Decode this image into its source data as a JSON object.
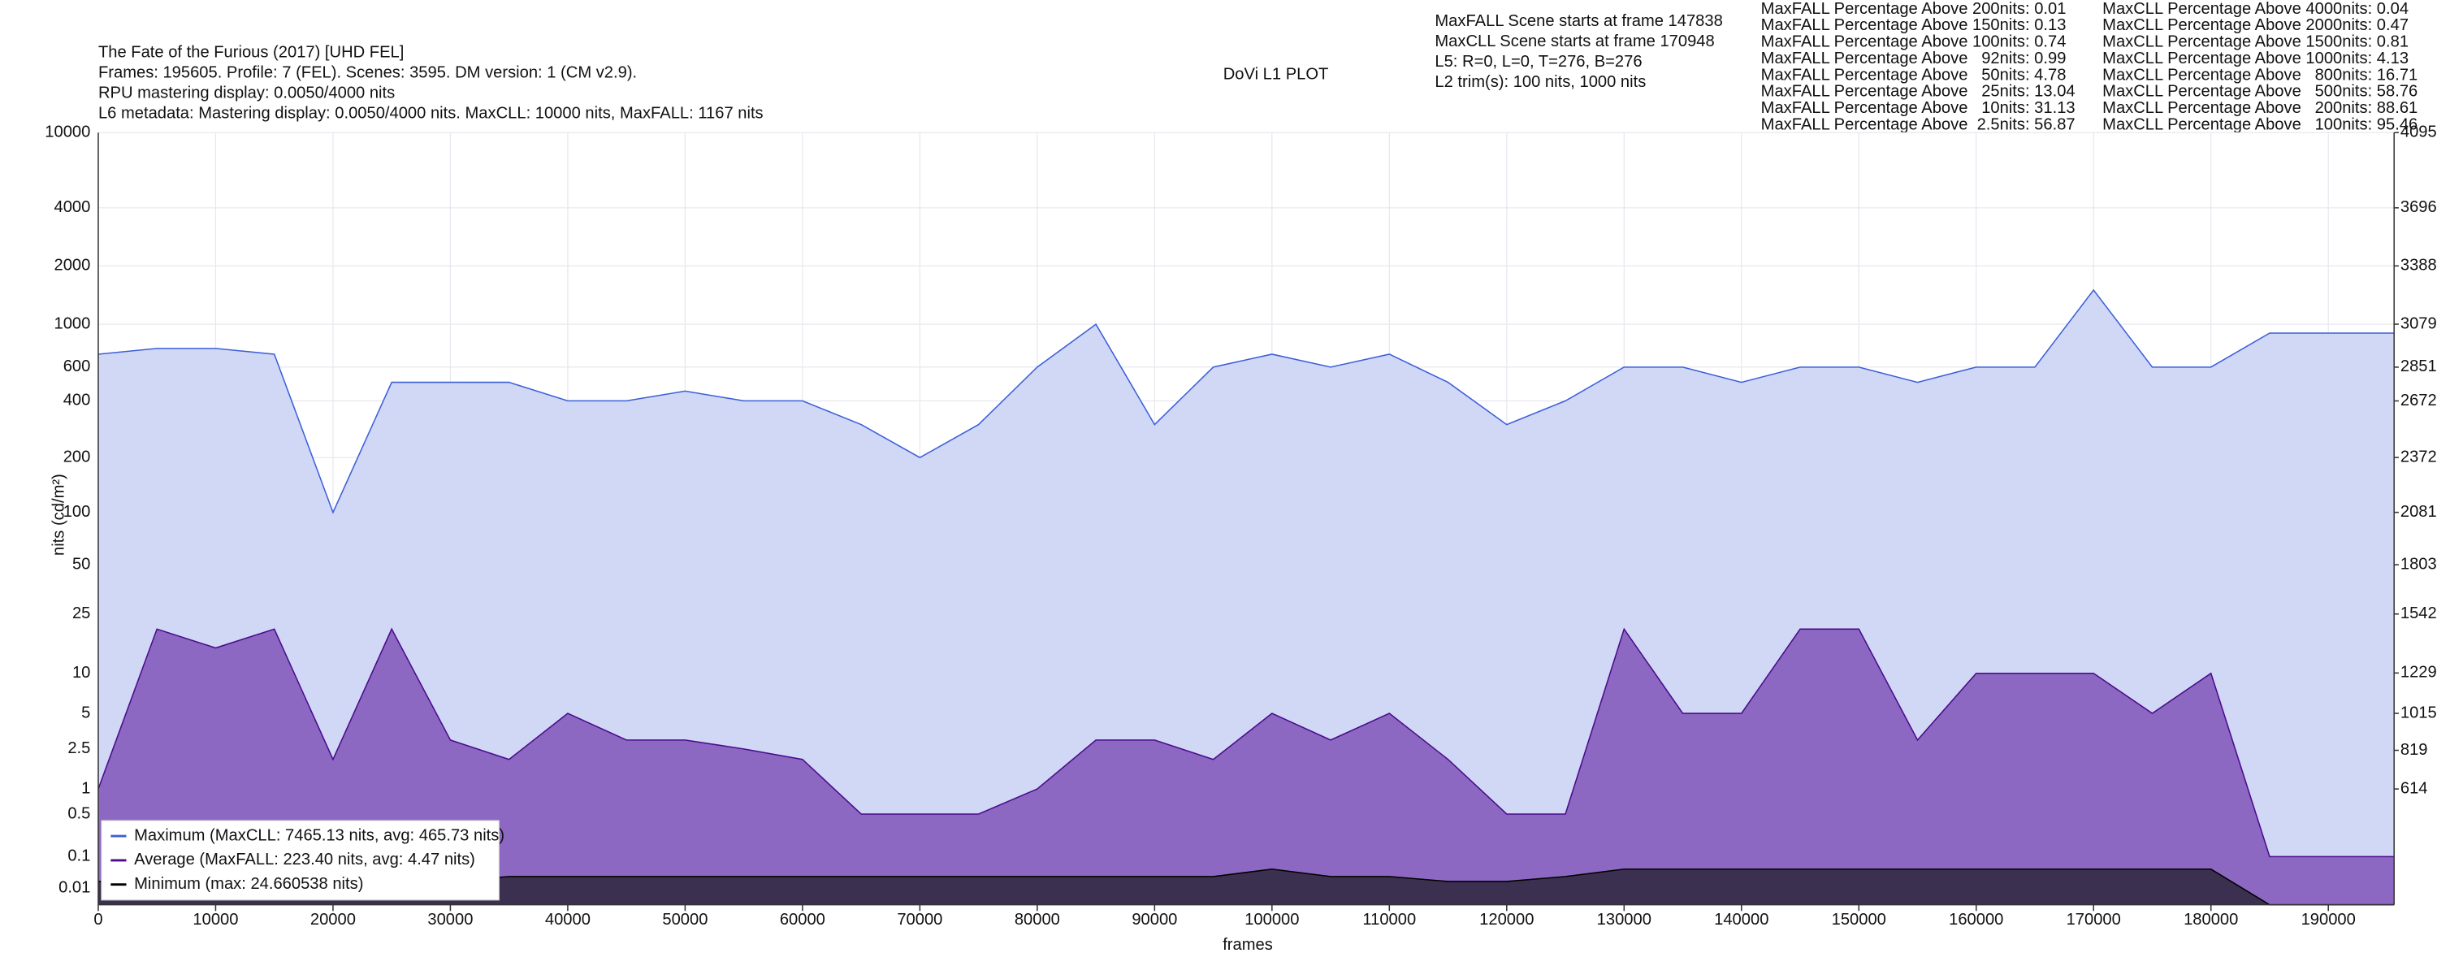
{
  "chart_data": {
    "type": "area",
    "title": "DoVi L1 PLOT",
    "header": [
      "The Fate of the Furious (2017) [UHD FEL]",
      "Frames: 195605. Profile: 7 (FEL). Scenes: 3595. DM version: 1 (CM v2.9).",
      "RPU mastering display: 0.0050/4000 nits",
      "L6 metadata: Mastering display: 0.0050/4000 nits. MaxCLL: 10000 nits, MaxFALL: 1167 nits"
    ],
    "info": [
      "MaxFALL Scene starts at frame 147838",
      "MaxCLL Scene starts at frame 170948",
      "L5: R=0, L=0, T=276, B=276",
      "L2 trim(s): 100 nits, 1000 nits"
    ],
    "maxfall_percentages": [
      "MaxFALL Percentage Above 200nits: 0.01",
      "MaxFALL Percentage Above 150nits: 0.13",
      "MaxFALL Percentage Above 100nits: 0.74",
      "MaxFALL Percentage Above   92nits: 0.99",
      "MaxFALL Percentage Above   50nits: 4.78",
      "MaxFALL Percentage Above   25nits: 13.04",
      "MaxFALL Percentage Above   10nits: 31.13",
      "MaxFALL Percentage Above  2.5nits: 56.87"
    ],
    "maxcll_percentages": [
      "MaxCLL Percentage Above 4000nits: 0.04",
      "MaxCLL Percentage Above 2000nits: 0.47",
      "MaxCLL Percentage Above 1500nits: 0.81",
      "MaxCLL Percentage Above 1000nits: 4.13",
      "MaxCLL Percentage Above   800nits: 16.71",
      "MaxCLL Percentage Above   500nits: 58.76",
      "MaxCLL Percentage Above   200nits: 88.61",
      "MaxCLL Percentage Above   100nits: 95.46"
    ],
    "x_label": "frames",
    "y_label": "nits (cd/m²)",
    "yscale": "pq",
    "grid": true,
    "x": [
      0,
      5000,
      10000,
      15000,
      20000,
      25000,
      30000,
      35000,
      40000,
      45000,
      50000,
      55000,
      60000,
      65000,
      70000,
      75000,
      80000,
      85000,
      90000,
      95000,
      100000,
      105000,
      110000,
      115000,
      120000,
      125000,
      130000,
      135000,
      140000,
      145000,
      150000,
      155000,
      160000,
      165000,
      170000,
      175000,
      180000,
      185000,
      190000,
      195000,
      195605
    ],
    "series": [
      {
        "name": "Maximum (MaxCLL: 7465.13 nits, avg: 465.73 nits)",
        "color": "#3c5fd8",
        "fill": "#d0d8f6",
        "values": [
          700,
          750,
          750,
          700,
          100,
          500,
          500,
          500,
          400,
          400,
          450,
          400,
          400,
          300,
          200,
          300,
          600,
          1000,
          300,
          600,
          700,
          600,
          700,
          500,
          300,
          400,
          600,
          600,
          500,
          600,
          600,
          500,
          600,
          600,
          1500,
          600,
          600,
          900,
          900,
          900,
          900
        ]
      },
      {
        "name": "Average (MaxFALL: 223.40 nits, avg: 4.47 nits)",
        "color": "#4b0a8c",
        "fill": "#8c68c2",
        "values": [
          1,
          20,
          15,
          20,
          2,
          20,
          3,
          2,
          5,
          3,
          3,
          2.5,
          2,
          0.5,
          0.5,
          0.5,
          1,
          3,
          3,
          2,
          5,
          3,
          5,
          2,
          0.5,
          0.5,
          20,
          5,
          5,
          20,
          20,
          3,
          10,
          10,
          10,
          5,
          10,
          0.1,
          0.1,
          0.1,
          0.1
        ]
      },
      {
        "name": "Minimum (max: 24.660538 nits)",
        "color": "#000000",
        "fill": "#3b3050",
        "values": [
          0.02,
          0.02,
          0.02,
          0.02,
          0.02,
          0.02,
          0.02,
          0.03,
          0.03,
          0.03,
          0.03,
          0.03,
          0.03,
          0.03,
          0.03,
          0.03,
          0.03,
          0.03,
          0.03,
          0.03,
          0.05,
          0.03,
          0.03,
          0.02,
          0.02,
          0.03,
          0.05,
          0.05,
          0.05,
          0.05,
          0.05,
          0.05,
          0.05,
          0.05,
          0.05,
          0.05,
          0.05,
          0,
          0,
          0,
          0
        ]
      }
    ],
    "xlim": [
      0,
      195605
    ],
    "xticks": [
      0,
      10000,
      20000,
      30000,
      40000,
      50000,
      60000,
      70000,
      80000,
      90000,
      100000,
      110000,
      120000,
      130000,
      140000,
      150000,
      160000,
      170000,
      180000,
      190000
    ],
    "ylim": [
      0,
      10000
    ],
    "yticks": [
      0.01,
      0.1,
      0.5,
      1,
      2.5,
      5,
      10,
      25,
      50,
      100,
      200,
      400,
      600,
      1000,
      2000,
      4000,
      10000
    ],
    "y2lim": [
      0,
      4095
    ],
    "y2ticks": [
      614,
      819,
      1015,
      1229,
      1542,
      1803,
      2081,
      2372,
      2672,
      2851,
      3079,
      3388,
      3696,
      4095
    ],
    "legend": "lower left"
  }
}
